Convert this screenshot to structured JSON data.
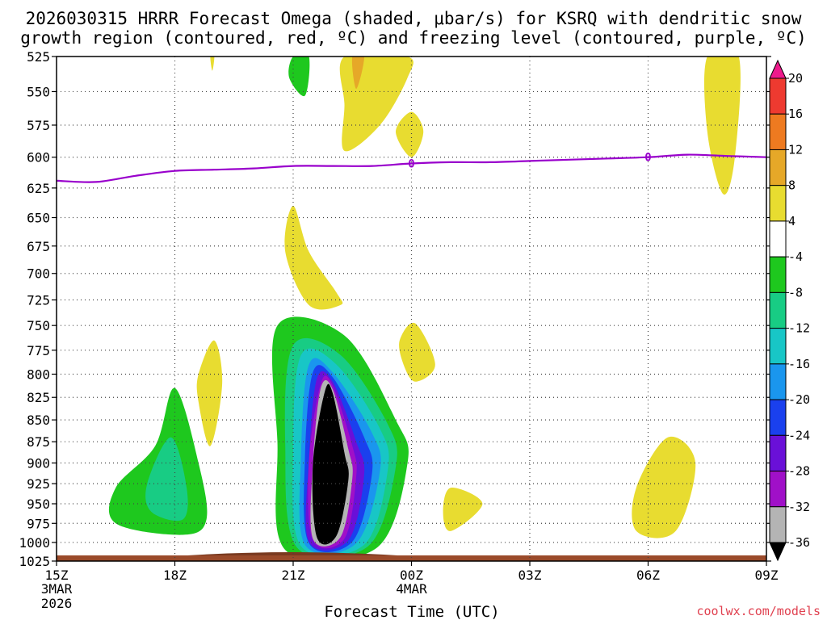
{
  "colors": {
    "freezing": "#9900cc",
    "credit": "#e0404f",
    "ground": "#9a4a2a",
    "ground_dark": "#7a3a20"
  },
  "chart_data": {
    "type": "contour",
    "title_line1": "2026030315 HRRR Forecast Omega (shaded, μbar/s) for KSRQ with dendritic snow",
    "title_line2": "growth region (contoured, red, ºC) and freezing level (contoured, purple, ºC)",
    "xlabel": "Forecast Time (UTC)",
    "credit": "coolwx.com/models",
    "x_range_hours": [
      0,
      18
    ],
    "x_ticks": [
      {
        "h": 0,
        "label": "15Z",
        "sub1": "3MAR",
        "sub2": "2026"
      },
      {
        "h": 3,
        "label": "18Z",
        "sub1": "",
        "sub2": ""
      },
      {
        "h": 6,
        "label": "21Z",
        "sub1": "",
        "sub2": ""
      },
      {
        "h": 9,
        "label": "00Z",
        "sub1": "4MAR",
        "sub2": ""
      },
      {
        "h": 12,
        "label": "03Z",
        "sub1": "",
        "sub2": ""
      },
      {
        "h": 15,
        "label": "06Z",
        "sub1": "",
        "sub2": ""
      },
      {
        "h": 18,
        "label": "09Z",
        "sub1": "",
        "sub2": ""
      }
    ],
    "pressure_range_mb": [
      525,
      1025
    ],
    "y_ticks": [
      525,
      550,
      575,
      600,
      625,
      650,
      675,
      700,
      725,
      750,
      775,
      800,
      825,
      850,
      875,
      900,
      925,
      950,
      975,
      1000,
      1025
    ],
    "colorbar": {
      "labels": [
        "20",
        "16",
        "12",
        "8",
        "4",
        "-4",
        "-8",
        "-12",
        "-16",
        "-20",
        "-24",
        "-28",
        "-32",
        "-36"
      ],
      "bins": [
        {
          "min": 20,
          "max": null,
          "color": "#ee1a8c"
        },
        {
          "min": 16,
          "max": 20,
          "color": "#ee3a30"
        },
        {
          "min": 12,
          "max": 16,
          "color": "#ee7a20"
        },
        {
          "min": 8,
          "max": 12,
          "color": "#e6a828"
        },
        {
          "min": 4,
          "max": 8,
          "color": "#e8dc30"
        },
        {
          "min": -4,
          "max": 4,
          "color": "#ffffff"
        },
        {
          "min": -8,
          "max": -4,
          "color": "#1ec81e"
        },
        {
          "min": -12,
          "max": -8,
          "color": "#18cc84"
        },
        {
          "min": -16,
          "max": -12,
          "color": "#18c6c6"
        },
        {
          "min": -20,
          "max": -16,
          "color": "#1a96ee"
        },
        {
          "min": -24,
          "max": -20,
          "color": "#1a40ee"
        },
        {
          "min": -28,
          "max": -24,
          "color": "#6a10d8"
        },
        {
          "min": -32,
          "max": -28,
          "color": "#a010c8"
        },
        {
          "min": -36,
          "max": -32,
          "color": "#b4b4b4"
        },
        {
          "min": null,
          "max": -36,
          "color": "#000000"
        }
      ]
    },
    "freezing_level": {
      "label": "0",
      "label_at_hours": [
        9,
        15
      ],
      "points": [
        [
          0,
          619
        ],
        [
          1,
          620
        ],
        [
          2,
          615
        ],
        [
          3,
          611
        ],
        [
          4,
          610
        ],
        [
          5,
          609
        ],
        [
          6,
          607
        ],
        [
          7,
          607
        ],
        [
          8,
          607
        ],
        [
          9,
          605
        ],
        [
          10,
          604
        ],
        [
          11,
          604
        ],
        [
          12,
          603
        ],
        [
          13,
          602
        ],
        [
          14,
          601
        ],
        [
          15,
          600
        ],
        [
          16,
          598
        ],
        [
          17,
          599
        ],
        [
          18,
          600
        ]
      ]
    },
    "omega_regions": [
      {
        "name": "upward-core",
        "color_levels": [
          "#1ec81e",
          "#18cc84",
          "#18c6c6",
          "#1a96ee",
          "#1a40ee",
          "#6a10d8",
          "#a010c8",
          "#b4b4b4",
          "#000000"
        ],
        "rings": [
          [
            [
              5.6,
              750
            ],
            [
              7.3,
              760
            ],
            [
              8.6,
              850
            ],
            [
              8.9,
              900
            ],
            [
              8.1,
              1008
            ],
            [
              5.8,
              1010
            ],
            [
              5.6,
              875
            ]
          ],
          [
            [
              6.0,
              770
            ],
            [
              7.2,
              780
            ],
            [
              8.4,
              855
            ],
            [
              8.6,
              905
            ],
            [
              7.9,
              1005
            ],
            [
              6.1,
              1007
            ],
            [
              5.8,
              880
            ]
          ],
          [
            [
              6.2,
              780
            ],
            [
              7.1,
              790
            ],
            [
              8.2,
              860
            ],
            [
              8.4,
              908
            ],
            [
              7.8,
              1003
            ],
            [
              6.2,
              1005
            ],
            [
              6.0,
              885
            ]
          ],
          [
            [
              6.4,
              790
            ],
            [
              7.0,
              798
            ],
            [
              8.0,
              865
            ],
            [
              8.2,
              910
            ],
            [
              7.6,
              1001
            ],
            [
              6.3,
              1003
            ],
            [
              6.2,
              890
            ]
          ],
          [
            [
              6.5,
              798
            ],
            [
              7.0,
              803
            ],
            [
              7.8,
              870
            ],
            [
              8.0,
              912
            ],
            [
              7.5,
              999
            ],
            [
              6.4,
              1001
            ],
            [
              6.3,
              893
            ]
          ],
          [
            [
              6.6,
              805
            ],
            [
              7.0,
              808
            ],
            [
              7.6,
              875
            ],
            [
              7.8,
              914
            ],
            [
              7.4,
              997
            ],
            [
              6.4,
              999
            ],
            [
              6.4,
              896
            ]
          ],
          [
            [
              6.7,
              810
            ],
            [
              7.0,
              812
            ],
            [
              7.5,
              880
            ],
            [
              7.6,
              916
            ],
            [
              7.3,
              995
            ],
            [
              6.5,
              997
            ],
            [
              6.4,
              898
            ]
          ],
          [
            [
              6.7,
              815
            ],
            [
              7.0,
              816
            ],
            [
              7.4,
              884
            ],
            [
              7.5,
              918
            ],
            [
              7.2,
              993
            ],
            [
              6.5,
              995
            ],
            [
              6.5,
              900
            ]
          ],
          [
            [
              6.8,
              819
            ],
            [
              7.0,
              820
            ],
            [
              7.3,
              888
            ],
            [
              7.4,
              920
            ],
            [
              7.1,
              991
            ],
            [
              6.6,
              993
            ],
            [
              6.5,
              902
            ]
          ]
        ]
      },
      {
        "name": "downward-green-upper",
        "value_color": "#1ec81e",
        "points": [
          [
            6.0,
            525
          ],
          [
            6.4,
            525
          ],
          [
            6.3,
            553
          ],
          [
            5.9,
            540
          ]
        ]
      },
      {
        "name": "downward-green-left",
        "value_color": "#1ec81e",
        "points": [
          [
            3.0,
            815
          ],
          [
            3.6,
            900
          ],
          [
            3.8,
            970
          ],
          [
            3.2,
            990
          ],
          [
            1.5,
            975
          ],
          [
            1.5,
            930
          ],
          [
            2.5,
            880
          ]
        ]
      },
      {
        "name": "downward-teal-left",
        "value_color": "#18cc84",
        "points": [
          [
            2.9,
            870
          ],
          [
            3.3,
            930
          ],
          [
            3.2,
            970
          ],
          [
            2.4,
            960
          ],
          [
            2.3,
            925
          ]
        ]
      },
      {
        "name": "yellow-525-a",
        "value_color": "#e8dc30",
        "points": [
          [
            3.9,
            525
          ],
          [
            4.0,
            525
          ],
          [
            3.95,
            535
          ]
        ]
      },
      {
        "name": "yellow-upper-b",
        "value_color": "#e8dc30",
        "points": [
          [
            7.3,
            525
          ],
          [
            8.9,
            525
          ],
          [
            8.9,
            540
          ],
          [
            8.2,
            575
          ],
          [
            7.3,
            595
          ],
          [
            7.3,
            560
          ]
        ]
      },
      {
        "name": "orange-upper-b",
        "value_color": "#e6a828",
        "points": [
          [
            7.5,
            525
          ],
          [
            7.8,
            525
          ],
          [
            7.6,
            548
          ]
        ]
      },
      {
        "name": "yellow-600",
        "value_color": "#e8dc30",
        "points": [
          [
            9.0,
            565
          ],
          [
            9.3,
            580
          ],
          [
            9.0,
            600
          ],
          [
            8.6,
            580
          ]
        ]
      },
      {
        "name": "yellow-650",
        "value_color": "#e8dc30",
        "points": [
          [
            6.0,
            640
          ],
          [
            6.4,
            680
          ],
          [
            7.1,
            718
          ],
          [
            7.2,
            730
          ],
          [
            6.4,
            730
          ],
          [
            5.8,
            680
          ]
        ]
      },
      {
        "name": "yellow-775",
        "value_color": "#e8dc30",
        "points": [
          [
            9.1,
            748
          ],
          [
            9.6,
            790
          ],
          [
            9.1,
            808
          ],
          [
            8.8,
            790
          ],
          [
            8.7,
            765
          ]
        ]
      },
      {
        "name": "yellow-815",
        "value_color": "#e8dc30",
        "points": [
          [
            4.0,
            765
          ],
          [
            4.2,
            810
          ],
          [
            3.9,
            880
          ],
          [
            3.6,
            830
          ],
          [
            3.6,
            800
          ]
        ]
      },
      {
        "name": "yellow-950",
        "value_color": "#e8dc30",
        "points": [
          [
            10.0,
            930
          ],
          [
            10.8,
            950
          ],
          [
            10.0,
            985
          ],
          [
            9.8,
            960
          ]
        ]
      },
      {
        "name": "yellow-930-right",
        "value_color": "#e8dc30",
        "points": [
          [
            15.5,
            870
          ],
          [
            16.2,
            900
          ],
          [
            15.7,
            985
          ],
          [
            14.7,
            985
          ],
          [
            14.7,
            930
          ]
        ]
      },
      {
        "name": "yellow-upper-right",
        "value_color": "#e8dc30",
        "points": [
          [
            16.5,
            525
          ],
          [
            17.3,
            525
          ],
          [
            17.2,
            600
          ],
          [
            16.9,
            630
          ],
          [
            16.5,
            580
          ]
        ]
      }
    ]
  }
}
